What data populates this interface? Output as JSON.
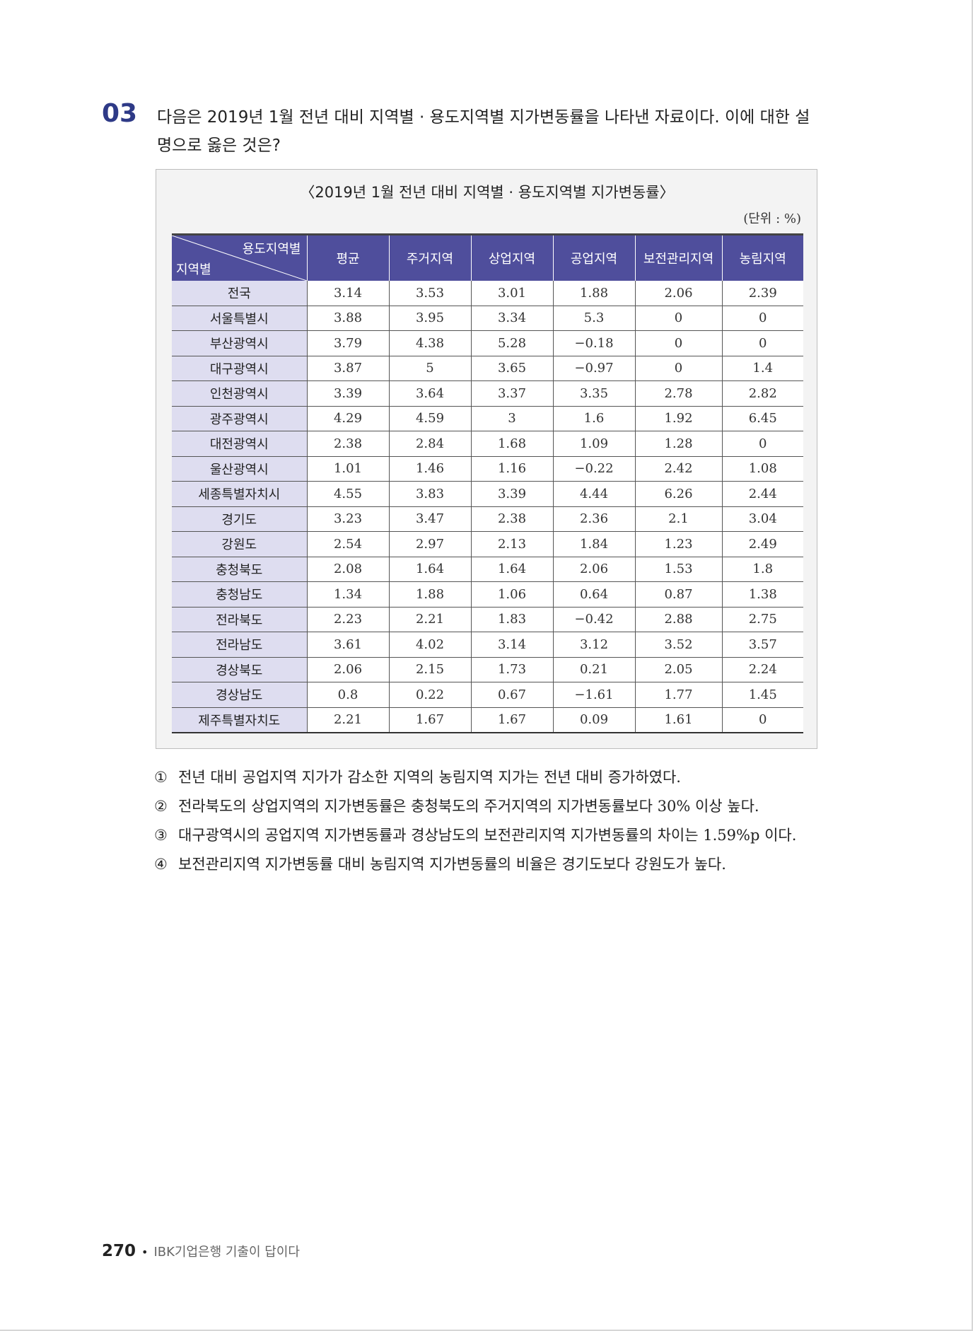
{
  "question": {
    "number": "03",
    "text": "다음은 2019년 1월 전년 대비 지역별 · 용도지역별 지가변동률을 나타낸 자료이다. 이에 대한 설명으로 옳은 것은?"
  },
  "table": {
    "title": "〈2019년 1월 전년 대비 지역별 · 용도지역별 지가변동률〉",
    "unit": "(단위 : %)",
    "corner_top": "용도지역별",
    "corner_bottom": "지역별",
    "columns": [
      "평균",
      "주거지역",
      "상업지역",
      "공업지역",
      "보전관리지역",
      "농림지역"
    ],
    "rows": [
      {
        "region": "전국",
        "values": [
          "3.14",
          "3.53",
          "3.01",
          "1.88",
          "2.06",
          "2.39"
        ]
      },
      {
        "region": "서울특별시",
        "values": [
          "3.88",
          "3.95",
          "3.34",
          "5.3",
          "0",
          "0"
        ]
      },
      {
        "region": "부산광역시",
        "values": [
          "3.79",
          "4.38",
          "5.28",
          "−0.18",
          "0",
          "0"
        ]
      },
      {
        "region": "대구광역시",
        "values": [
          "3.87",
          "5",
          "3.65",
          "−0.97",
          "0",
          "1.4"
        ]
      },
      {
        "region": "인천광역시",
        "values": [
          "3.39",
          "3.64",
          "3.37",
          "3.35",
          "2.78",
          "2.82"
        ]
      },
      {
        "region": "광주광역시",
        "values": [
          "4.29",
          "4.59",
          "3",
          "1.6",
          "1.92",
          "6.45"
        ]
      },
      {
        "region": "대전광역시",
        "values": [
          "2.38",
          "2.84",
          "1.68",
          "1.09",
          "1.28",
          "0"
        ]
      },
      {
        "region": "울산광역시",
        "values": [
          "1.01",
          "1.46",
          "1.16",
          "−0.22",
          "2.42",
          "1.08"
        ]
      },
      {
        "region": "세종특별자치시",
        "values": [
          "4.55",
          "3.83",
          "3.39",
          "4.44",
          "6.26",
          "2.44"
        ]
      },
      {
        "region": "경기도",
        "values": [
          "3.23",
          "3.47",
          "2.38",
          "2.36",
          "2.1",
          "3.04"
        ]
      },
      {
        "region": "강원도",
        "values": [
          "2.54",
          "2.97",
          "2.13",
          "1.84",
          "1.23",
          "2.49"
        ]
      },
      {
        "region": "충청북도",
        "values": [
          "2.08",
          "1.64",
          "1.64",
          "2.06",
          "1.53",
          "1.8"
        ]
      },
      {
        "region": "충청남도",
        "values": [
          "1.34",
          "1.88",
          "1.06",
          "0.64",
          "0.87",
          "1.38"
        ]
      },
      {
        "region": "전라북도",
        "values": [
          "2.23",
          "2.21",
          "1.83",
          "−0.42",
          "2.88",
          "2.75"
        ]
      },
      {
        "region": "전라남도",
        "values": [
          "3.61",
          "4.02",
          "3.14",
          "3.12",
          "3.52",
          "3.57"
        ]
      },
      {
        "region": "경상북도",
        "values": [
          "2.06",
          "2.15",
          "1.73",
          "0.21",
          "2.05",
          "2.24"
        ]
      },
      {
        "region": "경상남도",
        "values": [
          "0.8",
          "0.22",
          "0.67",
          "−1.61",
          "1.77",
          "1.45"
        ]
      },
      {
        "region": "제주특별자치도",
        "values": [
          "2.21",
          "1.67",
          "1.67",
          "0.09",
          "1.61",
          "0"
        ]
      }
    ]
  },
  "options": [
    {
      "mark": "①",
      "text": "전년 대비 공업지역 지가가 감소한 지역의 농림지역 지가는 전년 대비 증가하였다."
    },
    {
      "mark": "②",
      "text": "전라북도의 상업지역의 지가변동률은 충청북도의 주거지역의 지가변동률보다 30% 이상 높다."
    },
    {
      "mark": "③",
      "text": "대구광역시의 공업지역 지가변동률과 경상남도의 보전관리지역 지가변동률의 차이는 1.59%p 이다."
    },
    {
      "mark": "④",
      "text": "보전관리지역 지가변동률 대비 농림지역 지가변동률의 비율은 경기도보다 강원도가 높다."
    }
  ],
  "footer": {
    "page": "270",
    "bullet": "•",
    "book": "IBK기업은행 기출이 답이다"
  }
}
